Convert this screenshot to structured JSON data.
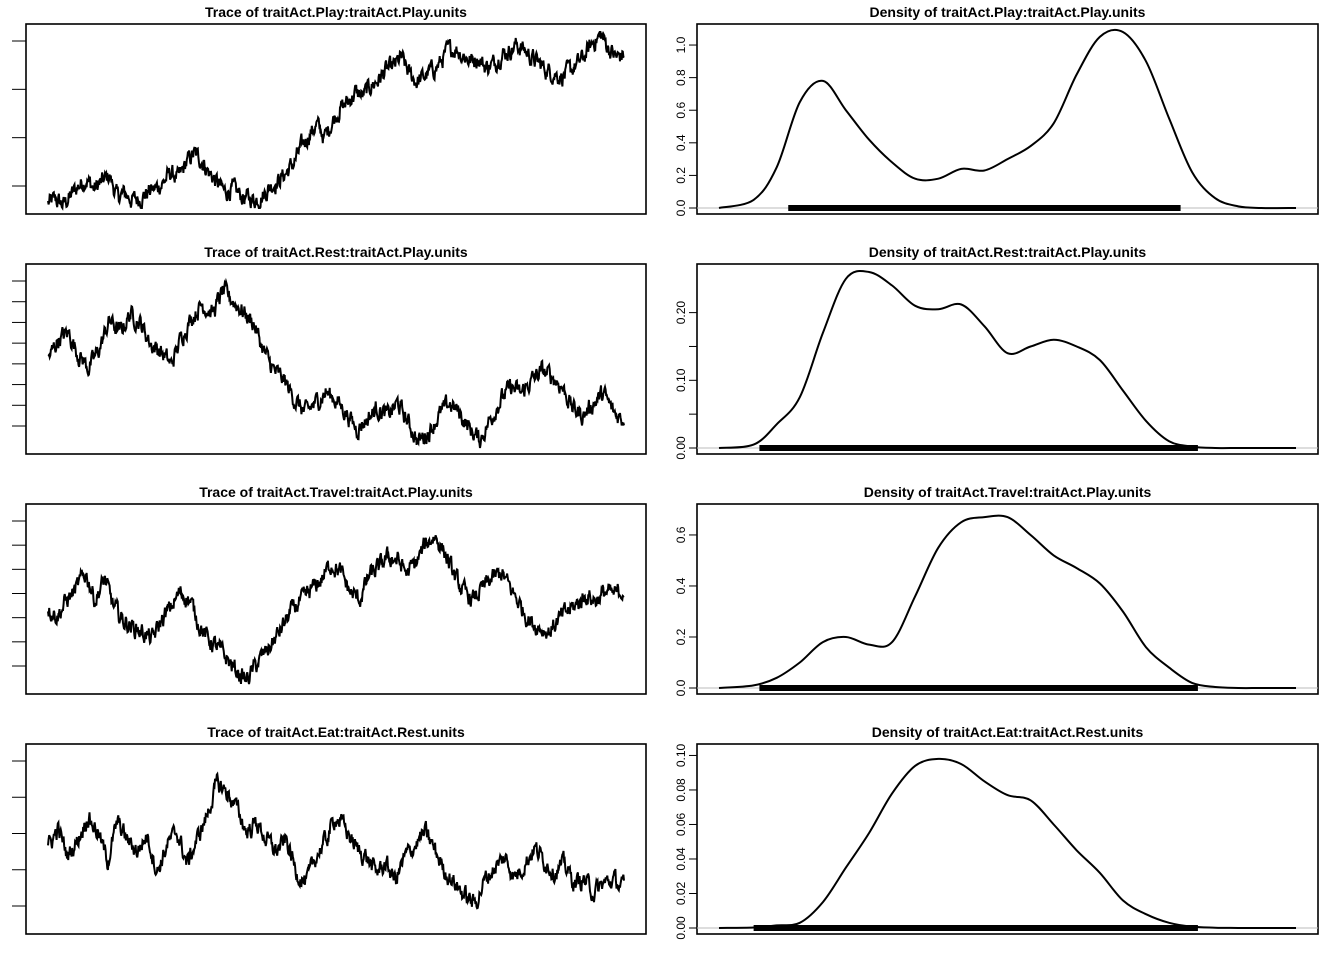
{
  "chart_data": [
    {
      "type": "line",
      "kind": "trace",
      "title": "Trace of traitAct.Play:traitAct.Play.units",
      "y_ticks_shown": 4,
      "y_tick_labels": [],
      "series": [
        {
          "values": [
            0.03,
            0.05,
            0.02,
            0.08,
            0.14,
            0.18,
            0.12,
            0.16,
            0.2,
            0.07,
            0.09,
            0.05,
            0.06,
            0.1,
            0.12,
            0.16,
            0.22,
            0.18,
            0.28,
            0.34,
            0.3,
            0.22,
            0.16,
            0.1,
            0.12,
            0.08,
            0.06,
            0.05,
            0.08,
            0.14,
            0.17,
            0.22,
            0.28,
            0.38,
            0.46,
            0.52,
            0.44,
            0.54,
            0.62,
            0.66,
            0.72,
            0.7,
            0.76,
            0.8,
            0.86,
            0.88,
            0.94,
            0.84,
            0.79,
            0.82,
            0.86,
            0.9,
            0.98,
            1.0,
            0.96,
            0.92,
            0.94,
            0.88,
            0.9,
            0.96,
            0.98,
            1.02,
            0.99,
            0.94,
            0.9,
            0.86,
            0.84,
            0.82,
            0.86,
            0.9,
            0.96,
            1.04,
            1.08,
            1.0,
            0.94,
            0.96
          ]
        }
      ]
    },
    {
      "type": "line",
      "kind": "density",
      "title": "Density of traitAct.Play:traitAct.Play.units",
      "y_tick_labels": [
        "0.0",
        "0.2",
        "0.4",
        "0.6",
        "0.8",
        "1.0"
      ],
      "ylim": [
        0,
        1.08
      ],
      "y_tick_values": [
        0,
        0.2,
        0.4,
        0.6,
        0.8,
        1.0
      ],
      "x": [
        0,
        0.06,
        0.1,
        0.14,
        0.18,
        0.22,
        0.26,
        0.3,
        0.34,
        0.38,
        0.42,
        0.46,
        0.5,
        0.54,
        0.58,
        0.62,
        0.66,
        0.7,
        0.74,
        0.78,
        0.82,
        0.86,
        0.9,
        0.94,
        1.0
      ],
      "series": [
        {
          "values": [
            0.0,
            0.05,
            0.25,
            0.65,
            0.78,
            0.6,
            0.42,
            0.28,
            0.18,
            0.18,
            0.24,
            0.23,
            0.3,
            0.38,
            0.52,
            0.82,
            1.05,
            1.08,
            0.9,
            0.55,
            0.22,
            0.06,
            0.01,
            0.0,
            0.0
          ]
        }
      ],
      "rug_range": [
        0.12,
        0.8
      ]
    },
    {
      "type": "line",
      "kind": "trace",
      "title": "Trace of traitAct.Rest:traitAct.Play.units",
      "y_ticks_shown": 8,
      "y_tick_labels": [],
      "series": [
        {
          "values": [
            0.55,
            0.68,
            0.72,
            0.58,
            0.5,
            0.62,
            0.8,
            0.72,
            0.84,
            0.78,
            0.65,
            0.6,
            0.52,
            0.7,
            0.82,
            0.9,
            0.84,
            0.98,
            0.92,
            0.85,
            0.78,
            0.6,
            0.48,
            0.42,
            0.3,
            0.22,
            0.28,
            0.35,
            0.3,
            0.22,
            0.12,
            0.18,
            0.25,
            0.2,
            0.28,
            0.16,
            0.04,
            0.1,
            0.2,
            0.28,
            0.22,
            0.12,
            0.05,
            0.18,
            0.3,
            0.38,
            0.34,
            0.42,
            0.48,
            0.45,
            0.38,
            0.25,
            0.2,
            0.28,
            0.34,
            0.22,
            0.18
          ]
        }
      ]
    },
    {
      "type": "line",
      "kind": "density",
      "title": "Density of traitAct.Rest:traitAct.Play.units",
      "y_tick_labels": [
        "0.00",
        "0.10",
        "0.20"
      ],
      "y_minor_tick_values": [
        0.05,
        0.15
      ],
      "ylim": [
        0,
        0.26
      ],
      "y_tick_values": [
        0,
        0.1,
        0.2
      ],
      "x": [
        0,
        0.06,
        0.1,
        0.14,
        0.18,
        0.22,
        0.26,
        0.3,
        0.34,
        0.38,
        0.42,
        0.46,
        0.5,
        0.54,
        0.58,
        0.62,
        0.66,
        0.7,
        0.74,
        0.78,
        0.82,
        0.86,
        0.9,
        0.94,
        1.0
      ],
      "series": [
        {
          "values": [
            0.0,
            0.005,
            0.035,
            0.075,
            0.17,
            0.25,
            0.26,
            0.24,
            0.21,
            0.205,
            0.212,
            0.18,
            0.14,
            0.15,
            0.16,
            0.15,
            0.13,
            0.085,
            0.04,
            0.01,
            0.002,
            0.0,
            0.0,
            0.0,
            0.0
          ]
        }
      ],
      "rug_range": [
        0.07,
        0.83
      ]
    },
    {
      "type": "line",
      "kind": "trace",
      "title": "Trace of traitAct.Travel:traitAct.Play.units",
      "y_ticks_shown": 7,
      "y_tick_labels": [],
      "series": [
        {
          "values": [
            0.5,
            0.45,
            0.55,
            0.62,
            0.72,
            0.55,
            0.68,
            0.5,
            0.42,
            0.38,
            0.35,
            0.3,
            0.42,
            0.5,
            0.6,
            0.55,
            0.4,
            0.3,
            0.25,
            0.18,
            0.1,
            0.05,
            0.14,
            0.22,
            0.3,
            0.4,
            0.5,
            0.55,
            0.62,
            0.68,
            0.78,
            0.72,
            0.6,
            0.55,
            0.7,
            0.75,
            0.82,
            0.8,
            0.72,
            0.78,
            0.9,
            0.95,
            0.85,
            0.7,
            0.6,
            0.55,
            0.62,
            0.68,
            0.72,
            0.62,
            0.52,
            0.42,
            0.38,
            0.35,
            0.42,
            0.48,
            0.52,
            0.58,
            0.55,
            0.6,
            0.58,
            0.62
          ]
        }
      ]
    },
    {
      "type": "line",
      "kind": "density",
      "title": "Density of traitAct.Travel:traitAct.Play.units",
      "y_tick_labels": [
        "0.0",
        "0.2",
        "0.4",
        "0.6"
      ],
      "ylim": [
        0,
        0.69
      ],
      "y_tick_values": [
        0,
        0.2,
        0.4,
        0.6
      ],
      "x": [
        0,
        0.06,
        0.1,
        0.14,
        0.18,
        0.22,
        0.26,
        0.3,
        0.34,
        0.38,
        0.42,
        0.46,
        0.5,
        0.54,
        0.58,
        0.62,
        0.66,
        0.7,
        0.74,
        0.78,
        0.82,
        0.86,
        0.9,
        0.94,
        1.0
      ],
      "series": [
        {
          "values": [
            0.0,
            0.01,
            0.04,
            0.1,
            0.18,
            0.2,
            0.17,
            0.18,
            0.36,
            0.55,
            0.65,
            0.67,
            0.67,
            0.6,
            0.52,
            0.47,
            0.41,
            0.3,
            0.16,
            0.08,
            0.02,
            0.004,
            0.0,
            0.0,
            0.0
          ]
        }
      ],
      "rug_range": [
        0.07,
        0.83
      ]
    },
    {
      "type": "line",
      "kind": "trace",
      "title": "Trace of traitAct.Eat:traitAct.Rest.units",
      "y_ticks_shown": 5,
      "y_tick_labels": [],
      "series": [
        {
          "values": [
            0.5,
            0.62,
            0.45,
            0.55,
            0.7,
            0.6,
            0.42,
            0.66,
            0.55,
            0.48,
            0.58,
            0.35,
            0.52,
            0.6,
            0.4,
            0.55,
            0.7,
            0.9,
            0.85,
            0.75,
            0.6,
            0.66,
            0.55,
            0.48,
            0.55,
            0.35,
            0.28,
            0.45,
            0.55,
            0.7,
            0.62,
            0.5,
            0.45,
            0.35,
            0.4,
            0.3,
            0.45,
            0.52,
            0.6,
            0.48,
            0.35,
            0.28,
            0.2,
            0.15,
            0.3,
            0.38,
            0.44,
            0.32,
            0.4,
            0.5,
            0.42,
            0.35,
            0.4,
            0.28,
            0.3,
            0.22,
            0.28,
            0.3,
            0.25
          ]
        }
      ]
    },
    {
      "type": "line",
      "kind": "density",
      "title": "Density of traitAct.Eat:traitAct.Rest.units",
      "y_tick_labels": [
        "0.00",
        "0.02",
        "0.04",
        "0.06",
        "0.08",
        "0.10"
      ],
      "ylim": [
        0,
        0.102
      ],
      "y_tick_values": [
        0,
        0.02,
        0.04,
        0.06,
        0.08,
        0.1
      ],
      "x": [
        0,
        0.06,
        0.1,
        0.14,
        0.18,
        0.22,
        0.26,
        0.3,
        0.34,
        0.38,
        0.42,
        0.46,
        0.5,
        0.54,
        0.58,
        0.62,
        0.66,
        0.7,
        0.74,
        0.78,
        0.82,
        0.86,
        0.9,
        0.94,
        1.0
      ],
      "series": [
        {
          "values": [
            0.0,
            0.0003,
            0.0015,
            0.003,
            0.015,
            0.035,
            0.055,
            0.078,
            0.094,
            0.098,
            0.095,
            0.085,
            0.077,
            0.074,
            0.06,
            0.045,
            0.032,
            0.016,
            0.008,
            0.003,
            0.0008,
            0.0002,
            0.0,
            0.0,
            0.0
          ]
        }
      ],
      "rug_range": [
        0.06,
        0.83
      ]
    }
  ]
}
